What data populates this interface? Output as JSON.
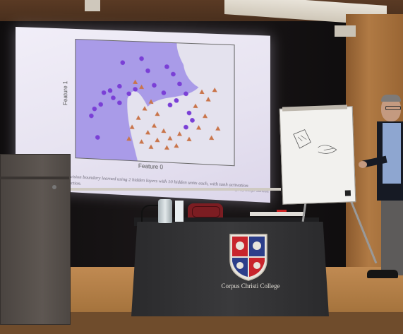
{
  "slide": {
    "ylabel": "Feature 1",
    "xlabel": "Feature 0",
    "caption": "Decision boundary learned using 2 hidden layers with 10 hidden units each, with tanh activation function.",
    "credit": "Image by Diego Sanuua"
  },
  "banner": {
    "college_name": "Corpus Christi College"
  },
  "colors": {
    "circle_class": "#7a3fd6",
    "triangle_class": "#c9744a",
    "region_purple": "#a99be8",
    "region_light": "#e4e2ee",
    "crest_red": "#c8242c",
    "crest_blue": "#2c3e8a"
  },
  "chart_data": {
    "type": "scatter",
    "xlabel": "Feature 0",
    "ylabel": "Feature 1",
    "series": [
      {
        "marker": "circle",
        "points": [
          [
            0.3,
            0.82
          ],
          [
            0.42,
            0.86
          ],
          [
            0.58,
            0.8
          ],
          [
            0.46,
            0.76
          ],
          [
            0.62,
            0.74
          ],
          [
            0.28,
            0.62
          ],
          [
            0.38,
            0.6
          ],
          [
            0.5,
            0.64
          ],
          [
            0.56,
            0.58
          ],
          [
            0.18,
            0.56
          ],
          [
            0.24,
            0.52
          ],
          [
            0.16,
            0.46
          ],
          [
            0.28,
            0.48
          ],
          [
            0.6,
            0.48
          ],
          [
            0.64,
            0.52
          ],
          [
            0.72,
            0.42
          ],
          [
            0.74,
            0.36
          ],
          [
            0.7,
            0.3
          ],
          [
            0.12,
            0.42
          ],
          [
            0.1,
            0.36
          ],
          [
            0.22,
            0.58
          ],
          [
            0.34,
            0.56
          ],
          [
            0.66,
            0.66
          ],
          [
            0.7,
            0.58
          ],
          [
            0.14,
            0.18
          ]
        ]
      },
      {
        "marker": "triangle",
        "points": [
          [
            0.38,
            0.66
          ],
          [
            0.42,
            0.62
          ],
          [
            0.48,
            0.5
          ],
          [
            0.44,
            0.44
          ],
          [
            0.52,
            0.4
          ],
          [
            0.5,
            0.3
          ],
          [
            0.46,
            0.24
          ],
          [
            0.56,
            0.26
          ],
          [
            0.6,
            0.2
          ],
          [
            0.66,
            0.24
          ],
          [
            0.72,
            0.2
          ],
          [
            0.78,
            0.3
          ],
          [
            0.82,
            0.4
          ],
          [
            0.84,
            0.54
          ],
          [
            0.8,
            0.6
          ],
          [
            0.88,
            0.62
          ],
          [
            0.86,
            0.22
          ],
          [
            0.64,
            0.14
          ],
          [
            0.58,
            0.12
          ],
          [
            0.52,
            0.18
          ],
          [
            0.4,
            0.36
          ],
          [
            0.36,
            0.28
          ],
          [
            0.42,
            0.16
          ],
          [
            0.48,
            0.12
          ],
          [
            0.76,
            0.48
          ],
          [
            0.9,
            0.3
          ],
          [
            0.34,
            0.18
          ]
        ]
      }
    ]
  }
}
